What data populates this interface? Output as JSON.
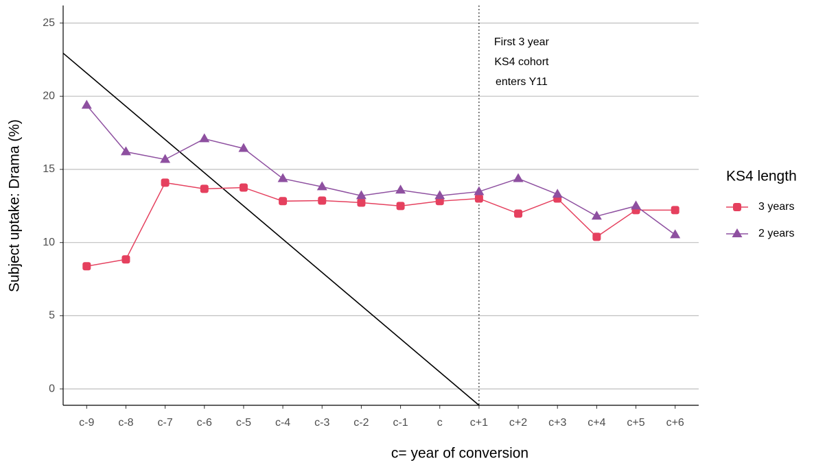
{
  "chart_data": {
    "type": "line",
    "x_label": "c= year of conversion",
    "y_label": "Subject uptake: Drama (%)",
    "categories": [
      "c-9",
      "c-8",
      "c-7",
      "c-6",
      "c-5",
      "c-4",
      "c-3",
      "c-2",
      "c-1",
      "c",
      "c+1",
      "c+2",
      "c+3",
      "c+4",
      "c+5",
      "c+6"
    ],
    "series": [
      {
        "name": "3 years",
        "color": "#e5405e",
        "marker": "square",
        "values": [
          8.38,
          8.85,
          14.09,
          13.67,
          13.76,
          12.83,
          12.87,
          12.73,
          12.5,
          12.83,
          13.01,
          11.98,
          13.01,
          10.39,
          12.22,
          12.22
        ]
      },
      {
        "name": "2 years",
        "color": "#8e50a0",
        "marker": "triangle",
        "values": [
          19.38,
          16.2,
          15.68,
          17.09,
          16.43,
          14.37,
          13.81,
          13.2,
          13.58,
          13.2,
          13.48,
          14.37,
          13.3,
          11.8,
          12.5,
          10.53
        ]
      }
    ],
    "ylim": [
      -1.12,
      26.2
    ],
    "yticks": [
      0,
      5,
      10,
      15,
      20,
      25
    ],
    "grid": true,
    "legend_title": "KS4 length",
    "legend_position": "right",
    "vline": {
      "category": "c+1",
      "style": "dotted"
    },
    "annotation": [
      "First 3 year",
      "KS4 cohort",
      "enters Y11"
    ],
    "diagonal_line": {
      "x_index": [
        -0.6,
        10
      ],
      "y": [
        22.94,
        -1.12
      ],
      "color": "#000000"
    }
  }
}
